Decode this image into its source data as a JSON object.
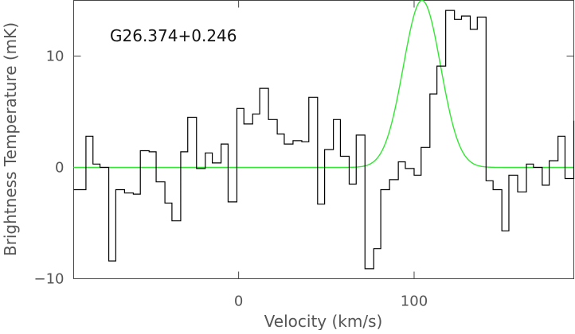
{
  "chart_data": {
    "type": "line",
    "title": "",
    "annotation": "G26.374+0.246",
    "xlabel": "Velocity (km/s)",
    "ylabel": "Brightness Temperature (mK)",
    "xlim": [
      -94,
      191
    ],
    "ylim": [
      -10,
      15
    ],
    "x_ticks": [
      0,
      100
    ],
    "x_tick_labels": [
      "0",
      "100"
    ],
    "y_ticks": [
      -10,
      0,
      10
    ],
    "y_tick_labels": [
      "−10",
      "0",
      "10"
    ],
    "grid": false,
    "colors": {
      "spectrum": "#000000",
      "fit": "#33e633",
      "axes": "#444444"
    },
    "series": [
      {
        "style": "step",
        "x": [
          -94,
          -87,
          -83,
          -79,
          -74,
          -70,
          -65,
          -60,
          -56,
          -51,
          -47,
          -42,
          -38,
          -33,
          -29,
          -24,
          -19,
          -15,
          -10,
          -6,
          -1,
          3,
          8,
          12,
          17,
          22,
          26,
          31,
          36,
          40,
          45,
          49,
          54,
          58,
          63,
          67,
          72,
          77,
          81,
          86,
          91,
          95,
          100,
          104,
          109,
          113,
          118,
          123,
          127,
          132,
          136,
          141,
          145,
          150,
          154,
          159,
          164,
          168,
          173,
          177,
          182,
          186,
          191
        ],
        "values": [
          -2.0,
          2.8,
          0.3,
          0.0,
          -8.4,
          -2.0,
          -2.3,
          -2.4,
          1.5,
          1.4,
          -1.3,
          -3.2,
          -4.8,
          1.4,
          4.5,
          -0.1,
          1.3,
          0.4,
          2.1,
          -3.1,
          5.3,
          3.9,
          4.8,
          7.1,
          4.3,
          3.0,
          2.1,
          2.4,
          2.3,
          6.3,
          -3.3,
          1.6,
          4.3,
          1.0,
          -1.5,
          2.9,
          -9.1,
          -7.3,
          -2.0,
          -1.1,
          0.5,
          -0.1,
          -0.7,
          1.8,
          6.6,
          9.1,
          14.1,
          13.3,
          13.6,
          12.4,
          13.5,
          -1.2,
          -2.0,
          -5.7,
          -0.7,
          -2.2,
          0.3,
          0.0,
          -1.6,
          0.6,
          2.8,
          -1.0,
          4.2
        ]
      },
      {
        "style": "gaussian-fit",
        "amplitude": 15.0,
        "center": 104.5,
        "fwhm": 25.0,
        "baseline": 0
      }
    ]
  }
}
